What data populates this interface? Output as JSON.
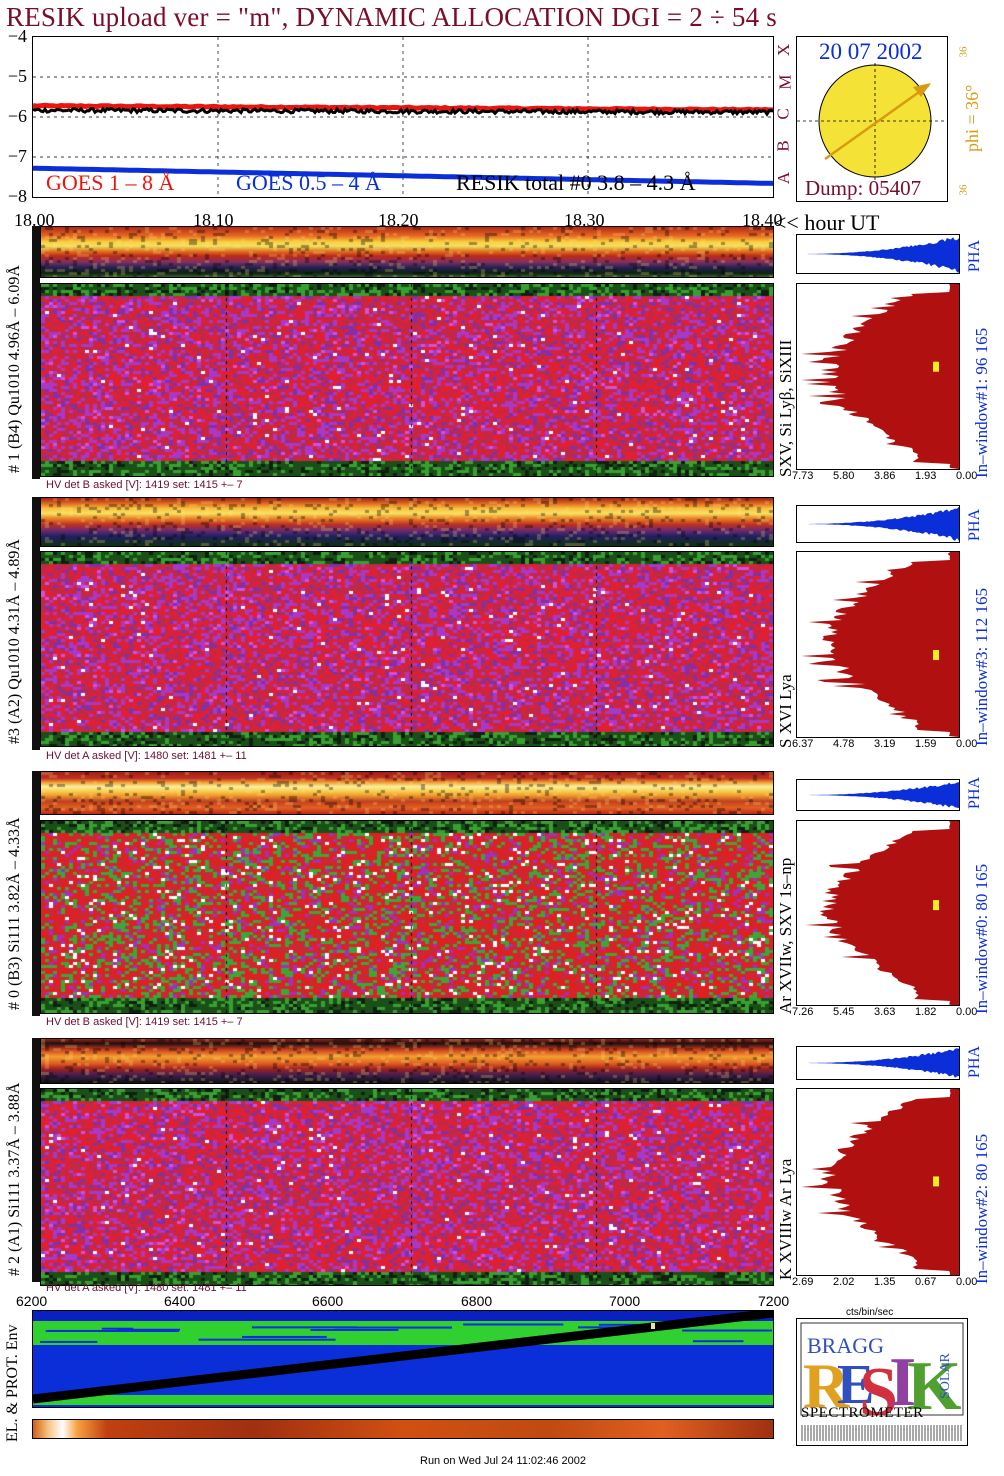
{
  "header": {
    "title": "RESIK upload ver = \"m\", DYNAMIC ALLOCATION  DGI =   2 ÷  54 s"
  },
  "lightcurve": {
    "yticks": [
      "−4",
      "−5",
      "−6",
      "−7",
      "−8"
    ],
    "ylim": [
      -8,
      -4
    ],
    "right_letters": [
      "X",
      "M",
      "C",
      "B",
      "A"
    ],
    "legend": {
      "goes_long": "GOES 1 – 8 Å",
      "goes_short": "GOES 0.5 – 4 Å",
      "resik_total": "RESIK total #0  3.8 – 4.3 Å"
    },
    "colors": {
      "goes_long": "#e8160f",
      "goes_short": "#0a2ed8",
      "resik_total": "#000000"
    }
  },
  "time_axis": {
    "ticks": [
      "18.00",
      "18.10",
      "18.20",
      "18.30",
      "18.40"
    ],
    "unit_label": "<< hour UT"
  },
  "sun_box": {
    "date": "20 07 2002",
    "phi_label": "phi = 36°",
    "angle_top": "36",
    "angle_bottom": "36",
    "dump_label": "Dump: 05407"
  },
  "channels": [
    {
      "id": 1,
      "range_label": "# 1 (B4) Qu1010 4.96Å – 6.09Å",
      "lines_label": "SXV, Si Lyβ, SiXIII",
      "window_label": "In–window#1:   96 165",
      "pha_label": "PHA",
      "hv_label": "HV det B asked [V]:  1419 set:  1415  +–    7",
      "x_ticks": [
        "7.73",
        "5.80",
        "3.86",
        "1.93",
        "0.00"
      ],
      "marker_frac": 0.42
    },
    {
      "id": 3,
      "range_label": "#3 (A2) Qu1010  4.31Å – 4.89Å",
      "lines_label": "S XVI Lya",
      "window_label": "In–window#3:   112 165",
      "pha_label": "PHA",
      "hv_label": "HV det A asked [V]:  1480 set:  1481  +–    11",
      "x_ticks": [
        "6.37",
        "4.78",
        "3.19",
        "1.59",
        "0.00"
      ],
      "marker_frac": 0.53
    },
    {
      "id": 0,
      "range_label": "# 0 (B3) Si111  3.82Å – 4.33Å",
      "lines_label": "Ar XVIIw,  SXV 1s–np",
      "window_label": "In–window#0:   80 165",
      "pha_label": "PHA",
      "hv_label": "HV det B asked [V]:  1419 set:  1415  +–    7",
      "x_ticks": [
        "7.26",
        "5.45",
        "3.63",
        "1.82",
        "0.00"
      ],
      "marker_frac": 0.43
    },
    {
      "id": 2,
      "range_label": "# 2 (A1) Si111  3.37Å – 3.88Å",
      "lines_label": "K XVIIIw  Ar Lya",
      "window_label": "In–window#2:   80 165",
      "pha_label": "PHA",
      "hv_label": "HV det A asked [V]:  1480 set:  1481  +–    11",
      "x_ticks": [
        "2.69",
        "2.02",
        "1.35",
        "0.67",
        "0.00"
      ],
      "marker_frac": 0.47
    }
  ],
  "histogram_unit": "cts/bin/sec",
  "env": {
    "x_ticks": [
      "6200",
      "6400",
      "6600",
      "6800",
      "7000",
      "7200"
    ],
    "label": "EL. & PROT. Env"
  },
  "logo": {
    "letters": "RESIK",
    "bragg": "BRAGG",
    "solar": "SOLAR",
    "caption": "SPECTROMETER",
    "colors": {
      "R": "#e0a020",
      "E": "#3050c0",
      "S": "#d03040",
      "I": "#9040a0",
      "K": "#50a030"
    }
  },
  "footer": {
    "run_text": "Run on Wed Jul 24 11:02:46 2002"
  }
}
